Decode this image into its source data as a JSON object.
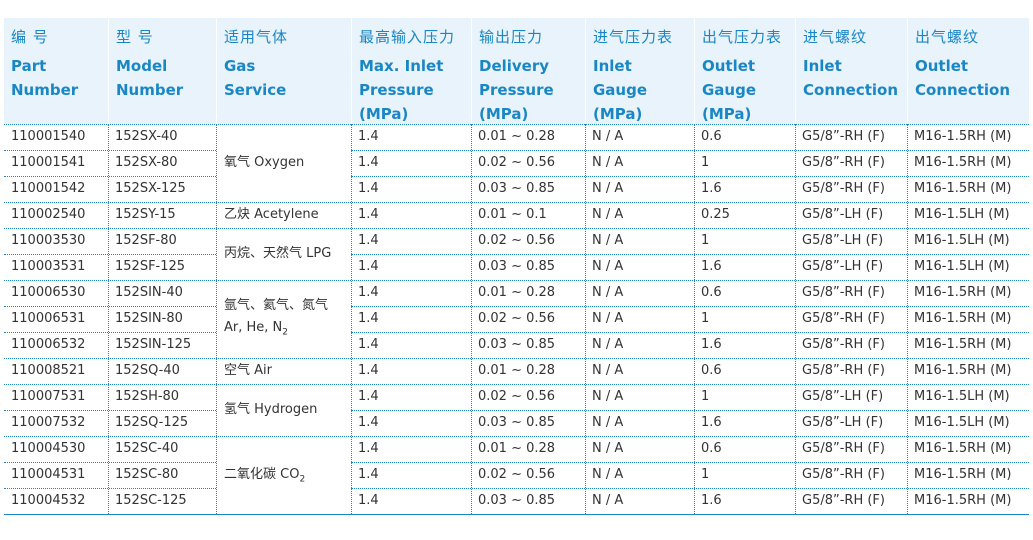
{
  "headers": [
    {
      "zh": "编 号",
      "en": [
        "Part",
        "Number"
      ]
    },
    {
      "zh": "型 号",
      "en": [
        "Model",
        "Number"
      ]
    },
    {
      "zh": "适用气体",
      "en": [
        "Gas",
        "Service"
      ]
    },
    {
      "zh": "最高输入压力",
      "en": [
        "Max. Inlet",
        "Pressure",
        "(MPa)"
      ]
    },
    {
      "zh": "输出压力",
      "en": [
        "Delivery",
        "Pressure",
        "(MPa)"
      ]
    },
    {
      "zh": "进气压力表",
      "en": [
        "Inlet",
        "Gauge",
        "(MPa)"
      ]
    },
    {
      "zh": "出气压力表",
      "en": [
        "Outlet",
        "Gauge",
        "(MPa)"
      ]
    },
    {
      "zh": "进气螺纹",
      "en": [
        "Inlet",
        "Connection"
      ]
    },
    {
      "zh": "出气螺纹",
      "en": [
        "Outlet",
        "Connection"
      ]
    }
  ],
  "rows": [
    {
      "part": "110001540",
      "model": "152SX-40",
      "max_inlet": "1.4",
      "delivery": "0.01 ~ 0.28",
      "inlet_gauge": "N / A",
      "outlet_gauge": "0.6",
      "inlet_conn": "G5/8”-RH (F)",
      "outlet_conn": "M16-1.5RH (M)"
    },
    {
      "part": "110001541",
      "model": "152SX-80",
      "max_inlet": "1.4",
      "delivery": "0.02 ~ 0.56",
      "inlet_gauge": "N / A",
      "outlet_gauge": "1",
      "inlet_conn": "G5/8”-RH (F)",
      "outlet_conn": "M16-1.5RH (M)"
    },
    {
      "part": "110001542",
      "model": "152SX-125",
      "max_inlet": "1.4",
      "delivery": "0.03 ~ 0.85",
      "inlet_gauge": "N / A",
      "outlet_gauge": "1.6",
      "inlet_conn": "G5/8”-RH (F)",
      "outlet_conn": "M16-1.5RH (M)"
    },
    {
      "part": "110002540",
      "model": "152SY-15",
      "max_inlet": "1.4",
      "delivery": "0.01 ~ 0.1",
      "inlet_gauge": "N / A",
      "outlet_gauge": "0.25",
      "inlet_conn": "G5/8”-LH (F)",
      "outlet_conn": "M16-1.5LH (M)"
    },
    {
      "part": "110003530",
      "model": "152SF-80",
      "max_inlet": "1.4",
      "delivery": "0.02 ~ 0.56",
      "inlet_gauge": "N / A",
      "outlet_gauge": "1",
      "inlet_conn": "G5/8”-LH (F)",
      "outlet_conn": "M16-1.5LH (M)"
    },
    {
      "part": "110003531",
      "model": "152SF-125",
      "max_inlet": "1.4",
      "delivery": "0.03 ~ 0.85",
      "inlet_gauge": "N / A",
      "outlet_gauge": "1.6",
      "inlet_conn": "G5/8”-LH (F)",
      "outlet_conn": "M16-1.5LH (M)"
    },
    {
      "part": "110006530",
      "model": "152SIN-40",
      "max_inlet": "1.4",
      "delivery": "0.01 ~ 0.28",
      "inlet_gauge": "N / A",
      "outlet_gauge": "0.6",
      "inlet_conn": "G5/8”-RH (F)",
      "outlet_conn": "M16-1.5RH (M)"
    },
    {
      "part": "110006531",
      "model": "152SIN-80",
      "max_inlet": "1.4",
      "delivery": "0.02 ~ 0.56",
      "inlet_gauge": "N / A",
      "outlet_gauge": "1",
      "inlet_conn": "G5/8”-RH (F)",
      "outlet_conn": "M16-1.5RH (M)"
    },
    {
      "part": "110006532",
      "model": "152SIN-125",
      "max_inlet": "1.4",
      "delivery": "0.03 ~ 0.85",
      "inlet_gauge": "N / A",
      "outlet_gauge": "1.6",
      "inlet_conn": "G5/8”-RH (F)",
      "outlet_conn": "M16-1.5RH (M)"
    },
    {
      "part": "110008521",
      "model": "152SQ-40",
      "max_inlet": "1.4",
      "delivery": "0.01 ~ 0.28",
      "inlet_gauge": "N / A",
      "outlet_gauge": "0.6",
      "inlet_conn": "G5/8”-RH (F)",
      "outlet_conn": "M16-1.5RH (M)"
    },
    {
      "part": "110007531",
      "model": "152SH-80",
      "max_inlet": "1.4",
      "delivery": "0.02 ~ 0.56",
      "inlet_gauge": "N / A",
      "outlet_gauge": "1",
      "inlet_conn": "G5/8”-LH (F)",
      "outlet_conn": "M16-1.5LH (M)"
    },
    {
      "part": "110007532",
      "model": "152SQ-125",
      "max_inlet": "1.4",
      "delivery": "0.03 ~ 0.85",
      "inlet_gauge": "N / A",
      "outlet_gauge": "1.6",
      "inlet_conn": "G5/8”-LH (F)",
      "outlet_conn": "M16-1.5LH (M)"
    },
    {
      "part": "110004530",
      "model": "152SC-40",
      "max_inlet": "1.4",
      "delivery": "0.01 ~ 0.28",
      "inlet_gauge": "N / A",
      "outlet_gauge": "0.6",
      "inlet_conn": "G5/8”-RH (F)",
      "outlet_conn": "M16-1.5RH (M)"
    },
    {
      "part": "110004531",
      "model": "152SC-80",
      "max_inlet": "1.4",
      "delivery": "0.02 ~ 0.56",
      "inlet_gauge": "N / A",
      "outlet_gauge": "1",
      "inlet_conn": "G5/8”-RH (F)",
      "outlet_conn": "M16-1.5RH (M)"
    },
    {
      "part": "110004532",
      "model": "152SC-125",
      "max_inlet": "1.4",
      "delivery": "0.03 ~ 0.85",
      "inlet_gauge": "N / A",
      "outlet_gauge": "1.6",
      "inlet_conn": "G5/8”-RH (F)",
      "outlet_conn": "M16-1.5RH (M)"
    }
  ],
  "gas_groups": [
    {
      "start": 0,
      "span": 3,
      "lines": [
        {
          "text": "氧气 Oxygen"
        }
      ]
    },
    {
      "start": 3,
      "span": 1,
      "lines": [
        {
          "text": "乙炔  Acetylene"
        }
      ]
    },
    {
      "start": 4,
      "span": 2,
      "lines": [
        {
          "text": "丙烷、天然气 LPG"
        }
      ]
    },
    {
      "start": 6,
      "span": 3,
      "lines": [
        {
          "text": "氩气、氦气、氮气"
        },
        {
          "text": "Ar, He, N",
          "sub": "2"
        }
      ]
    },
    {
      "start": 9,
      "span": 1,
      "lines": [
        {
          "text": "空气 Air"
        }
      ]
    },
    {
      "start": 10,
      "span": 2,
      "lines": [
        {
          "text": "氢气 Hydrogen"
        }
      ]
    },
    {
      "start": 12,
      "span": 3,
      "lines": [
        {
          "text": "二氧化碳 CO",
          "sub": "2"
        }
      ]
    }
  ],
  "colors": {
    "accent": "#1a87c4",
    "header_bg": "#e8f3fb",
    "text": "#333333"
  }
}
